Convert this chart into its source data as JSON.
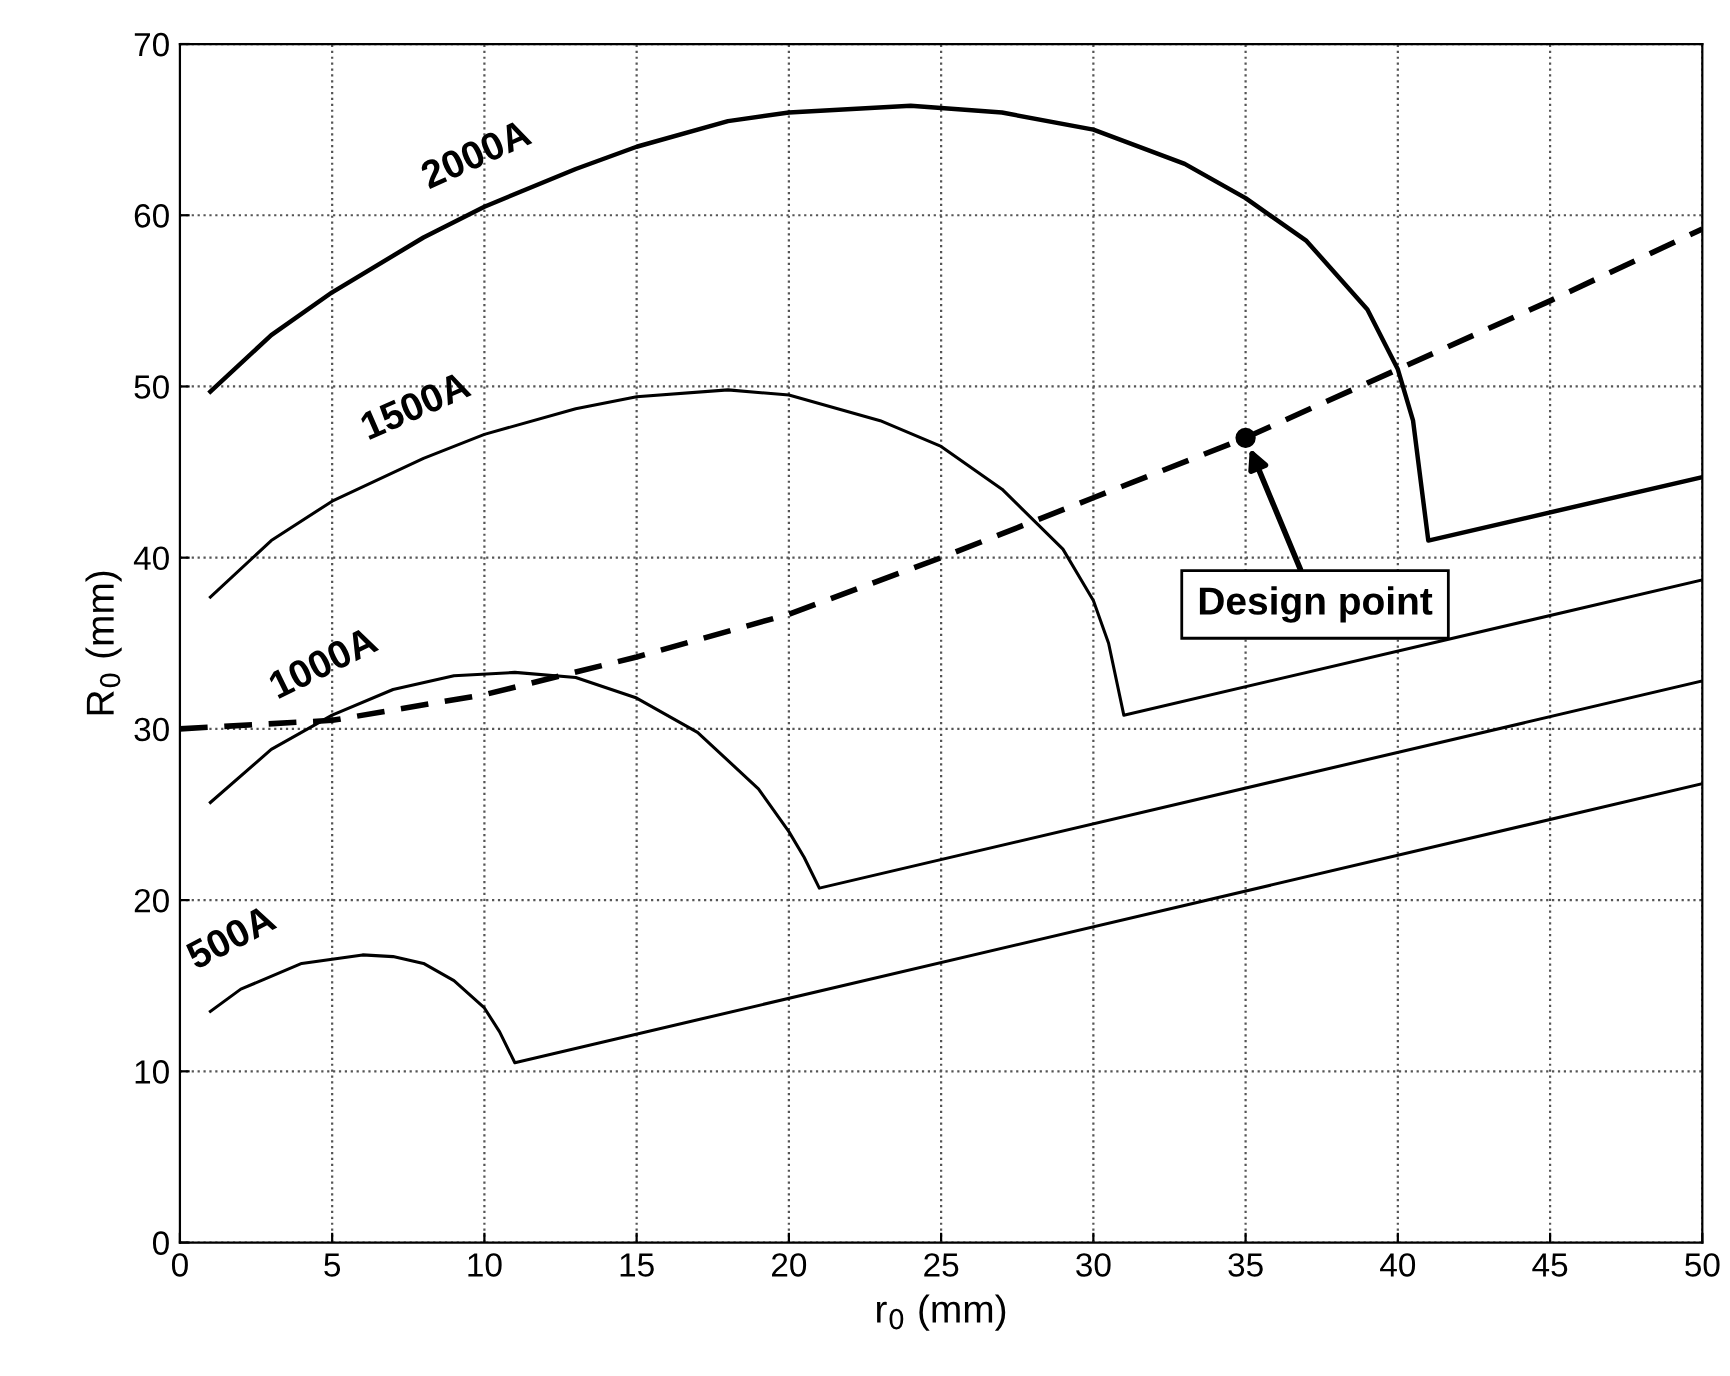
{
  "chart_data": {
    "type": "line",
    "xlabel": "r$_{0}$ (mm)",
    "ylabel": "R$_{0}$ (mm)",
    "xlim": [
      0,
      50
    ],
    "ylim": [
      0,
      70
    ],
    "xticks": [
      0,
      5,
      10,
      15,
      20,
      25,
      30,
      35,
      40,
      45,
      50
    ],
    "yticks": [
      0,
      10,
      20,
      30,
      40,
      50,
      60,
      70
    ],
    "grid": true,
    "series": [
      {
        "name": "2000A",
        "color": "#000000",
        "x": [
          1,
          3,
          5,
          8,
          10,
          13,
          15,
          18,
          20,
          24,
          27,
          30,
          33,
          35,
          37,
          39,
          40,
          40.5,
          41,
          50
        ],
        "values": [
          49.7,
          53,
          55.5,
          58.7,
          60.5,
          62.7,
          64,
          65.5,
          66,
          66.4,
          66,
          65,
          63,
          61,
          58.5,
          54.5,
          51,
          48,
          41,
          44.7
        ]
      },
      {
        "name": "1500A",
        "color": "#000000",
        "x": [
          1,
          3,
          5,
          8,
          10,
          13,
          15,
          18,
          20,
          23,
          25,
          27,
          29,
          30,
          30.5,
          31,
          50
        ],
        "values": [
          37.7,
          41,
          43.3,
          45.8,
          47.2,
          48.7,
          49.4,
          49.8,
          49.5,
          48,
          46.5,
          44,
          40.5,
          37.5,
          35,
          30.8,
          38.7
        ]
      },
      {
        "name": "1000A",
        "color": "#000000",
        "x": [
          1,
          3,
          5,
          7,
          9,
          11,
          13,
          15,
          17,
          19,
          20,
          20.5,
          21,
          50
        ],
        "values": [
          25.7,
          28.8,
          30.8,
          32.3,
          33.1,
          33.3,
          33,
          31.8,
          29.8,
          26.5,
          24,
          22.5,
          20.7,
          32.8
        ]
      },
      {
        "name": "500A",
        "color": "#000000",
        "x": [
          1,
          2,
          4,
          6,
          7,
          8,
          9,
          10,
          10.5,
          11,
          50
        ],
        "values": [
          13.5,
          14.8,
          16.3,
          16.8,
          16.7,
          16.3,
          15.3,
          13.7,
          12.3,
          10.5,
          26.8
        ]
      },
      {
        "color": "#000000",
        "line_style": "dashed",
        "x": [
          0,
          5,
          10,
          15,
          20,
          25,
          30,
          35,
          40,
          45,
          50
        ],
        "values": [
          30,
          30.5,
          32,
          34.2,
          36.7,
          40,
          43.5,
          47,
          51,
          55,
          59.2
        ]
      },
      {
        "type": "scatter",
        "color": "#000000",
        "marker": "circle",
        "x": [
          35
        ],
        "values": [
          47
        ]
      }
    ],
    "annotations": [
      {
        "text": "Design point",
        "x": 35,
        "y": 47
      }
    ]
  }
}
